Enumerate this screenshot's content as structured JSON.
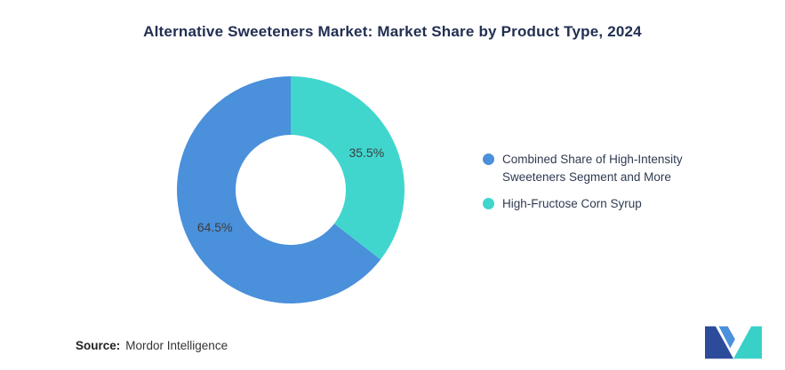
{
  "title": "Alternative Sweeteners Market: Market Share by Product Type, 2024",
  "source": {
    "label": "Source:",
    "name": "Mordor Intelligence"
  },
  "branding": {
    "logo_blue": "#2d4b9b",
    "logo_light_blue": "#4a90db",
    "logo_teal": "#38d1c8"
  },
  "chart_data": {
    "type": "pie",
    "subtype": "donut",
    "title": "Alternative Sweeteners Market: Market Share by Product Type, 2024",
    "legend_position": "right",
    "start_angle_deg": -90,
    "direction": "counterclockwise",
    "inner_radius_ratio": 0.485,
    "label_color": "#3d3d3d",
    "total": 100,
    "segments": [
      {
        "label": "Combined Share of High-Intensity Sweeteners Segment and More",
        "value": 64.5,
        "value_label": "64.5%",
        "color": "#4a90db"
      },
      {
        "label": "High-Fructose Corn Syrup",
        "value": 35.5,
        "value_label": "35.5%",
        "color": "#40d6ce"
      }
    ]
  }
}
